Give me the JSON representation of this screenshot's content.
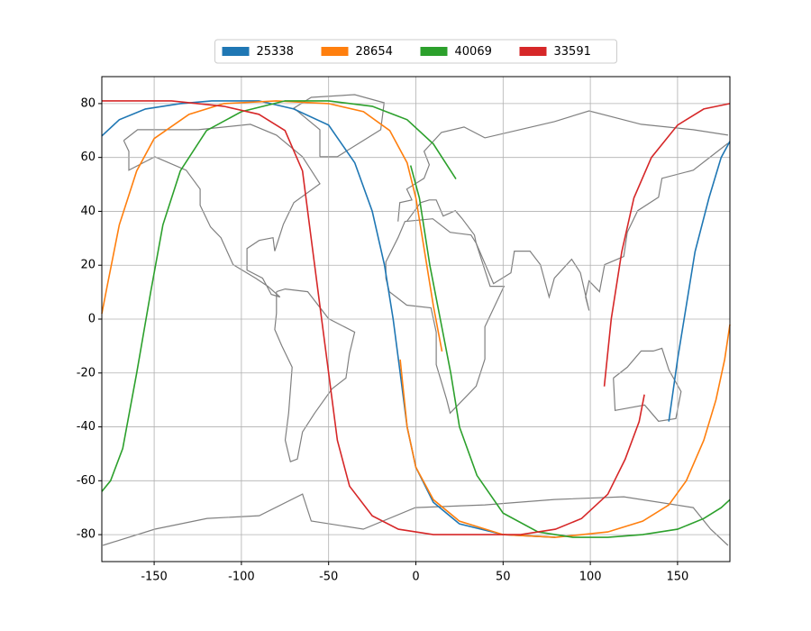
{
  "chart_data": {
    "type": "line",
    "xlim": [
      -180,
      180
    ],
    "ylim": [
      -90,
      90
    ],
    "xticks": [
      -150,
      -100,
      -50,
      0,
      50,
      100,
      150
    ],
    "yticks": [
      -80,
      -60,
      -40,
      -20,
      0,
      20,
      40,
      60,
      80
    ],
    "grid": true,
    "legend": "upper center",
    "series": [
      {
        "name": "25338",
        "color": "#1f77b4",
        "x": [
          -180,
          -170,
          -155,
          -135,
          -117,
          -90,
          -70,
          -50,
          -35,
          -25,
          -18,
          -13,
          -9,
          -5,
          0,
          10,
          25,
          50,
          80,
          null,
          145,
          150,
          155,
          160,
          168,
          175,
          180
        ],
        "values": [
          68,
          74,
          78,
          80,
          81,
          81,
          78,
          72,
          58,
          40,
          20,
          0,
          -20,
          -40,
          -55,
          -68,
          -76,
          -80,
          -81,
          null,
          -38,
          -15,
          5,
          25,
          45,
          60,
          66
        ]
      },
      {
        "name": "28654",
        "color": "#ff7f0e",
        "x": [
          -180,
          -177,
          -170,
          -160,
          -150,
          -130,
          -110,
          -80,
          -50,
          -30,
          -15,
          -5,
          0,
          5,
          10,
          15,
          null,
          -9,
          -5,
          0,
          10,
          25,
          50,
          80,
          110,
          130,
          145,
          155,
          165,
          172,
          177,
          180
        ],
        "values": [
          2,
          12,
          35,
          55,
          67,
          76,
          80,
          81,
          80,
          77,
          70,
          58,
          45,
          25,
          5,
          -12,
          null,
          -15,
          -40,
          -55,
          -67,
          -75,
          -80,
          -81,
          -79,
          -75,
          -69,
          -60,
          -45,
          -30,
          -15,
          -2
        ]
      },
      {
        "name": "40069",
        "color": "#2ca02c",
        "x": [
          -180,
          -175,
          -168,
          -160,
          -152,
          -145,
          -135,
          -120,
          -100,
          -75,
          -50,
          -25,
          -5,
          10,
          20,
          23,
          null,
          -3,
          2,
          8,
          14,
          20,
          25,
          35,
          50,
          70,
          90,
          110,
          130,
          150,
          165,
          175,
          180
        ],
        "values": [
          -64,
          -60,
          -48,
          -20,
          10,
          35,
          55,
          70,
          77,
          81,
          81,
          79,
          74,
          65,
          55,
          52,
          null,
          57,
          45,
          20,
          0,
          -20,
          -40,
          -58,
          -72,
          -79,
          -81,
          -81,
          -80,
          -78,
          -74,
          -70,
          -67
        ]
      },
      {
        "name": "33591",
        "color": "#d62728",
        "x": [
          -180,
          -140,
          -110,
          -90,
          -75,
          -65,
          -60,
          -55,
          -50,
          -45,
          -38,
          -25,
          -10,
          10,
          40,
          60,
          80,
          95,
          110,
          120,
          128,
          131,
          null,
          108,
          112,
          118,
          125,
          135,
          150,
          165,
          180
        ],
        "values": [
          81,
          81,
          79,
          76,
          70,
          55,
          30,
          5,
          -20,
          -45,
          -62,
          -73,
          -78,
          -80,
          -80,
          -80,
          -78,
          -74,
          -65,
          -52,
          -38,
          -28,
          null,
          -25,
          0,
          25,
          45,
          60,
          72,
          78,
          80
        ]
      }
    ]
  }
}
